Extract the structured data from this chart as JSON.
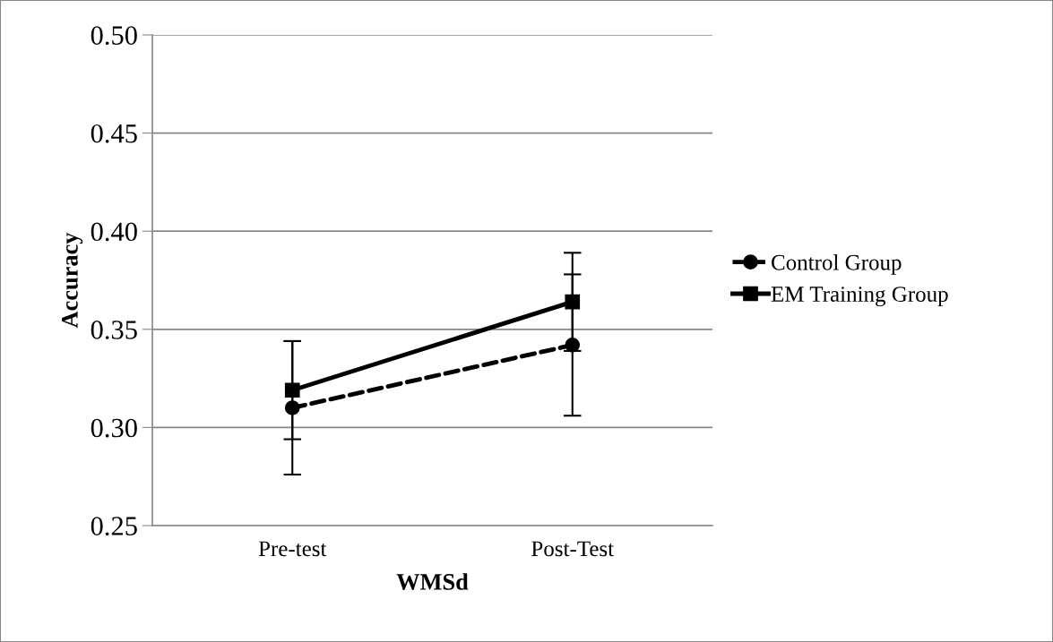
{
  "chart_data": {
    "type": "line",
    "xlabel": "WMSd",
    "ylabel": "Accuracy",
    "categories": [
      "Pre-test",
      "Post-Test"
    ],
    "series": [
      {
        "name": "Control Group",
        "color": "#000000",
        "values": [
          0.31,
          0.342
        ],
        "errors": [
          0.034,
          0.036
        ],
        "marker": "circle",
        "line_style": "dashed"
      },
      {
        "name": "EM Training Group",
        "color": "#000000",
        "values": [
          0.319,
          0.364
        ],
        "errors": [
          0.025,
          0.025
        ],
        "marker": "square",
        "line_style": "solid"
      }
    ],
    "ylim": [
      0.25,
      0.5
    ],
    "yticks": [
      {
        "value": 0.25,
        "label": "0.25"
      },
      {
        "value": 0.3,
        "label": "0.30"
      },
      {
        "value": 0.35,
        "label": "0.35"
      },
      {
        "value": 0.4,
        "label": "0.40"
      },
      {
        "value": 0.45,
        "label": "0.45"
      },
      {
        "value": 0.5,
        "label": "0.50"
      }
    ],
    "grid": "y",
    "legend": "right"
  }
}
